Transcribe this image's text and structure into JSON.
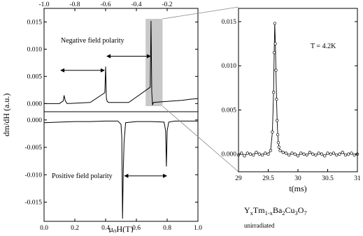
{
  "chart_data": [
    {
      "type": "line",
      "panel": "negative field polarity (top-left)",
      "annotation": "Negative field polarity",
      "ylabel": "dm/dH (a.u.)",
      "x_top_axis": {
        "ticks": [
          -1.0,
          -0.8,
          -0.6,
          -0.4,
          -0.2
        ],
        "tick_labels": [
          "-1.0",
          "-0.8",
          "-0.6",
          "-0.4",
          "-0.2"
        ],
        "range": [
          -1.0,
          0.0
        ]
      },
      "ylim": [
        -0.0015,
        0.0175
      ],
      "y_ticks": [
        0.0,
        0.005,
        0.01,
        0.015
      ],
      "y_tick_labels": [
        "0.000",
        "0.005",
        "0.010",
        "0.015"
      ],
      "series": [
        {
          "x": [
            -1.0,
            -0.9,
            -0.875,
            -0.87,
            -0.862,
            -0.85,
            -0.7,
            -0.605,
            -0.6,
            -0.595,
            -0.59,
            -0.58,
            -0.45,
            -0.31,
            -0.305,
            -0.3,
            -0.295,
            -0.29,
            -0.25,
            -0.2,
            -0.15,
            -0.1,
            -0.05,
            0.0
          ],
          "y": [
            0.0,
            0.0,
            0.0005,
            0.0015,
            0.0005,
            0.0,
            0.0002,
            0.002,
            0.0068,
            0.001,
            0.0004,
            0.0002,
            0.0002,
            0.003,
            0.0152,
            0.002,
            -0.0003,
            0.0002,
            0.0003,
            0.0004,
            0.0005,
            0.0006,
            0.0008,
            0.0009
          ]
        }
      ],
      "highlight_band": [
        -0.34,
        -0.23
      ],
      "arrows": [
        [
          -0.605,
          -0.895
        ],
        [
          -0.595,
          -0.305
        ]
      ]
    },
    {
      "type": "line",
      "panel": "positive field polarity (bottom-left)",
      "annotation": "Positive field polarity",
      "xlabel": "μ0H(T)",
      "xlim": [
        0.0,
        1.0
      ],
      "x_ticks": [
        0.0,
        0.2,
        0.4,
        0.6,
        0.8,
        1.0
      ],
      "x_tick_labels": [
        "0.0",
        "0.2",
        "0.4",
        "0.6",
        "0.8",
        "1.0"
      ],
      "ylim": [
        -0.0185,
        0.0015
      ],
      "y_ticks": [
        0.0,
        -0.005,
        -0.01,
        -0.015
      ],
      "y_tick_labels": [
        "0.000",
        "-0.005",
        "-0.010",
        "-0.015"
      ],
      "series": [
        {
          "x": [
            0.0,
            0.1,
            0.2,
            0.3,
            0.4,
            0.48,
            0.5,
            0.505,
            0.51,
            0.515,
            0.52,
            0.53,
            0.6,
            0.7,
            0.78,
            0.79,
            0.795,
            0.8,
            0.81,
            0.85,
            0.95,
            1.0
          ],
          "y": [
            -0.0005,
            -0.0004,
            -0.0003,
            -0.0003,
            -0.0002,
            -0.0002,
            -0.0008,
            -0.003,
            -0.018,
            -0.009,
            -0.004,
            -0.0005,
            -0.0003,
            -0.0003,
            -0.0004,
            -0.002,
            -0.0085,
            -0.002,
            -0.0004,
            -0.0002,
            -0.0002,
            -0.0002
          ]
        }
      ],
      "arrows": [
        [
          0.52,
          0.8
        ]
      ]
    },
    {
      "type": "line",
      "panel": "time trace (right)",
      "annotation": "T = 4.2K",
      "xlabel": "t(ms)",
      "xlim": [
        29.0,
        31.0
      ],
      "x_ticks": [
        29.0,
        29.5,
        30.0,
        30.5,
        31.0
      ],
      "x_tick_labels": [
        "29",
        "29.5",
        "30",
        "30.5",
        "31"
      ],
      "ylim": [
        -0.002,
        0.0165
      ],
      "y_ticks": [
        0.0,
        0.005,
        0.01,
        0.015
      ],
      "y_tick_labels": [
        "0.000",
        "0.005",
        "0.010",
        "0.015"
      ],
      "series": [
        {
          "x": [
            29.0,
            29.05,
            29.1,
            29.15,
            29.2,
            29.25,
            29.3,
            29.35,
            29.4,
            29.45,
            29.5,
            29.54,
            29.57,
            29.59,
            29.6,
            29.61,
            29.62,
            29.63,
            29.64,
            29.65,
            29.66,
            29.67,
            29.68,
            29.7,
            29.75,
            29.8,
            29.85,
            29.9,
            29.95,
            30.0,
            30.05,
            30.1,
            30.15,
            30.2,
            30.25,
            30.3,
            30.35,
            30.4,
            30.45,
            30.5,
            30.55,
            30.6,
            30.65,
            30.7,
            30.75,
            30.8,
            30.85,
            30.9,
            30.95,
            31.0
          ],
          "y": [
            -0.0001,
            0.0001,
            -0.0002,
            0.0001,
            0.0,
            -0.0001,
            0.0002,
            0.0,
            -0.0001,
            0.0001,
            0.0,
            0.0004,
            0.0025,
            0.007,
            0.0115,
            0.0148,
            0.0125,
            0.0095,
            0.0062,
            0.0038,
            0.0022,
            0.0013,
            0.0008,
            0.0004,
            0.0002,
            0.0001,
            -0.0001,
            0.0001,
            0.0,
            -0.0002,
            0.0001,
            0.0,
            -0.0001,
            0.0002,
            0.0,
            -0.0001,
            0.0001,
            0.0,
            -0.0002,
            0.0001,
            0.0,
            0.0001,
            -0.0001,
            0.0,
            0.0002,
            -0.0001,
            0.0,
            0.0001,
            -0.0001,
            0.0
          ]
        }
      ]
    }
  ],
  "sample": {
    "formula_parts": [
      "Y",
      "x",
      "Tm",
      "1-x",
      "Ba",
      "2",
      "Cu",
      "3",
      "O",
      "7"
    ],
    "condition": "unirradiated"
  },
  "colors": {
    "line": "#000000",
    "highlight": "#c8c8c8",
    "zoom_lines": "#888888"
  }
}
